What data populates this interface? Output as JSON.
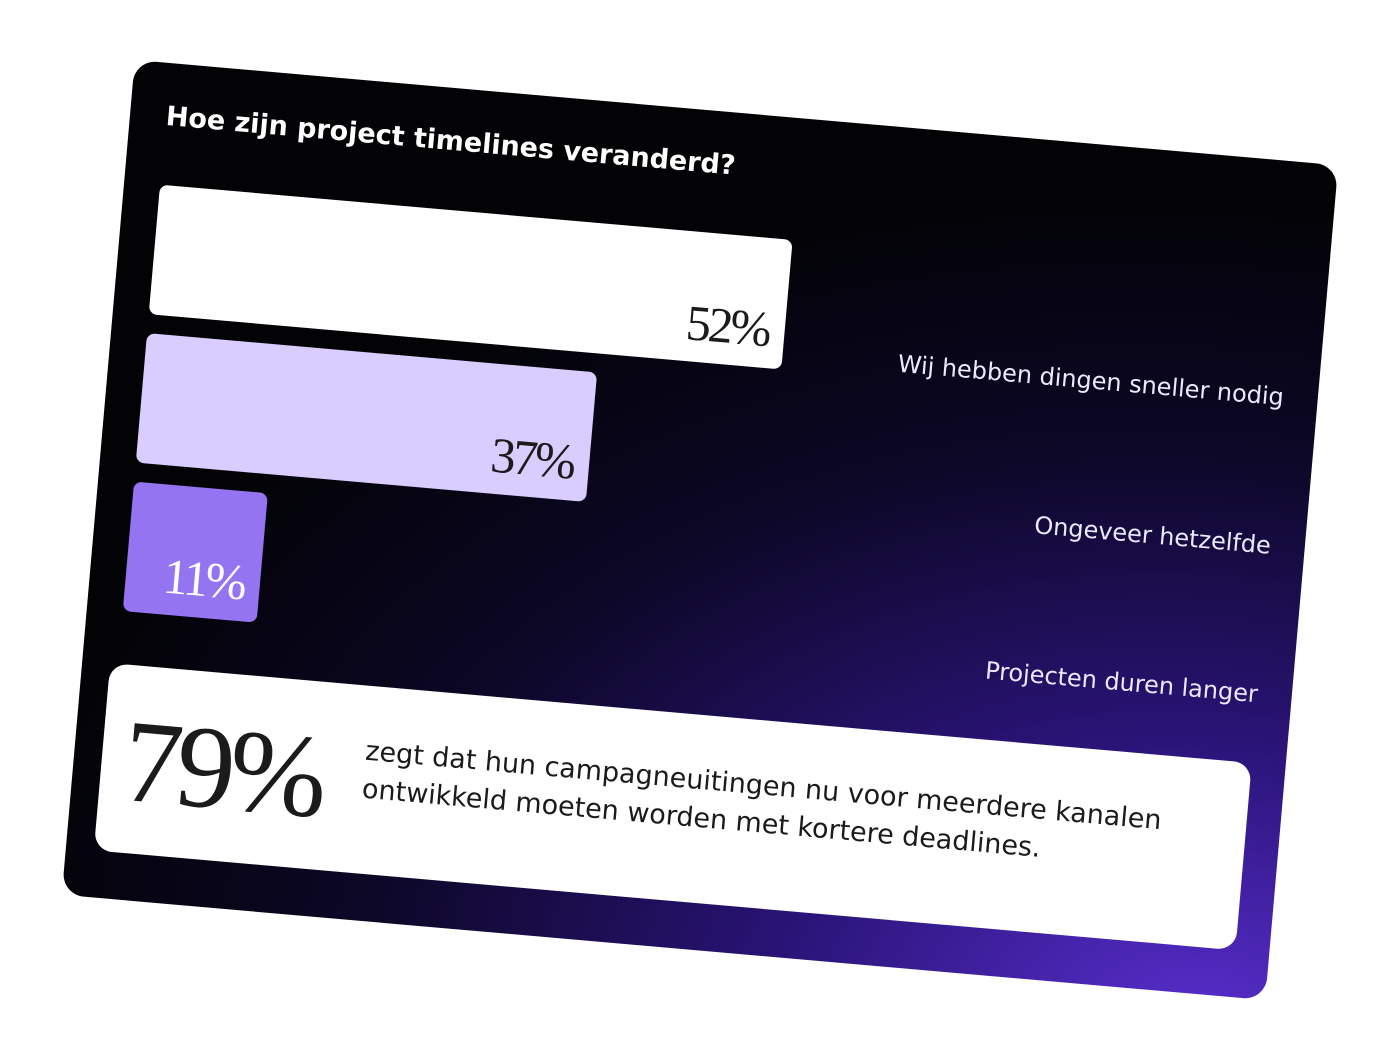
{
  "chart_data": {
    "type": "bar",
    "orientation": "horizontal",
    "title": "Hoe zijn project timelines veranderd?",
    "categories": [
      "Wij hebben dingen sneller nodig",
      "Ongeveer hetzelfde",
      "Projecten duren langer"
    ],
    "values": [
      52,
      37,
      11
    ],
    "value_labels": [
      "52%",
      "37%",
      "11%"
    ],
    "colors": [
      "#ffffff",
      "#d9ccff",
      "#9574f2"
    ],
    "label_colors": [
      "#1b1b1b",
      "#1b1b1b",
      "#ffffff"
    ]
  },
  "callout": {
    "stat": "79%",
    "text": "zegt dat hun campagneuitingen nu voor meerdere kanalen ontwikkeld moeten worden met kortere deadlines."
  }
}
